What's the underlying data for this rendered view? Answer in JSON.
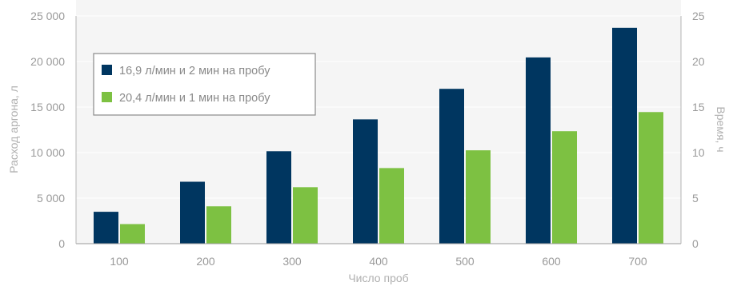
{
  "chart_data": {
    "type": "bar",
    "categories": [
      "100",
      "200",
      "300",
      "400",
      "500",
      "600",
      "700"
    ],
    "series": [
      {
        "name": "16,9 л/мин и 2 мин на пробу",
        "values": [
          3500,
          6800,
          10150,
          13650,
          17000,
          20450,
          23700
        ],
        "color": "#003660"
      },
      {
        "name": "20,4 л/мин и 1 мин на пробу",
        "values": [
          2150,
          4100,
          6200,
          8300,
          10250,
          12350,
          14450
        ],
        "color": "#7dc142"
      }
    ],
    "xlabel": "Число проб",
    "ylabel": "Расход аргона, л",
    "y2label": "Время, ч",
    "ylim": [
      0,
      25000
    ],
    "y2lim": [
      0,
      25
    ],
    "yticks": [
      "0",
      "5 000",
      "10 000",
      "15 000",
      "20 000",
      "25 000"
    ],
    "y2ticks": [
      "0",
      "5",
      "10",
      "15",
      "20",
      "25"
    ],
    "grid": true,
    "legend": "top-left",
    "background": "#f5f5f5"
  }
}
